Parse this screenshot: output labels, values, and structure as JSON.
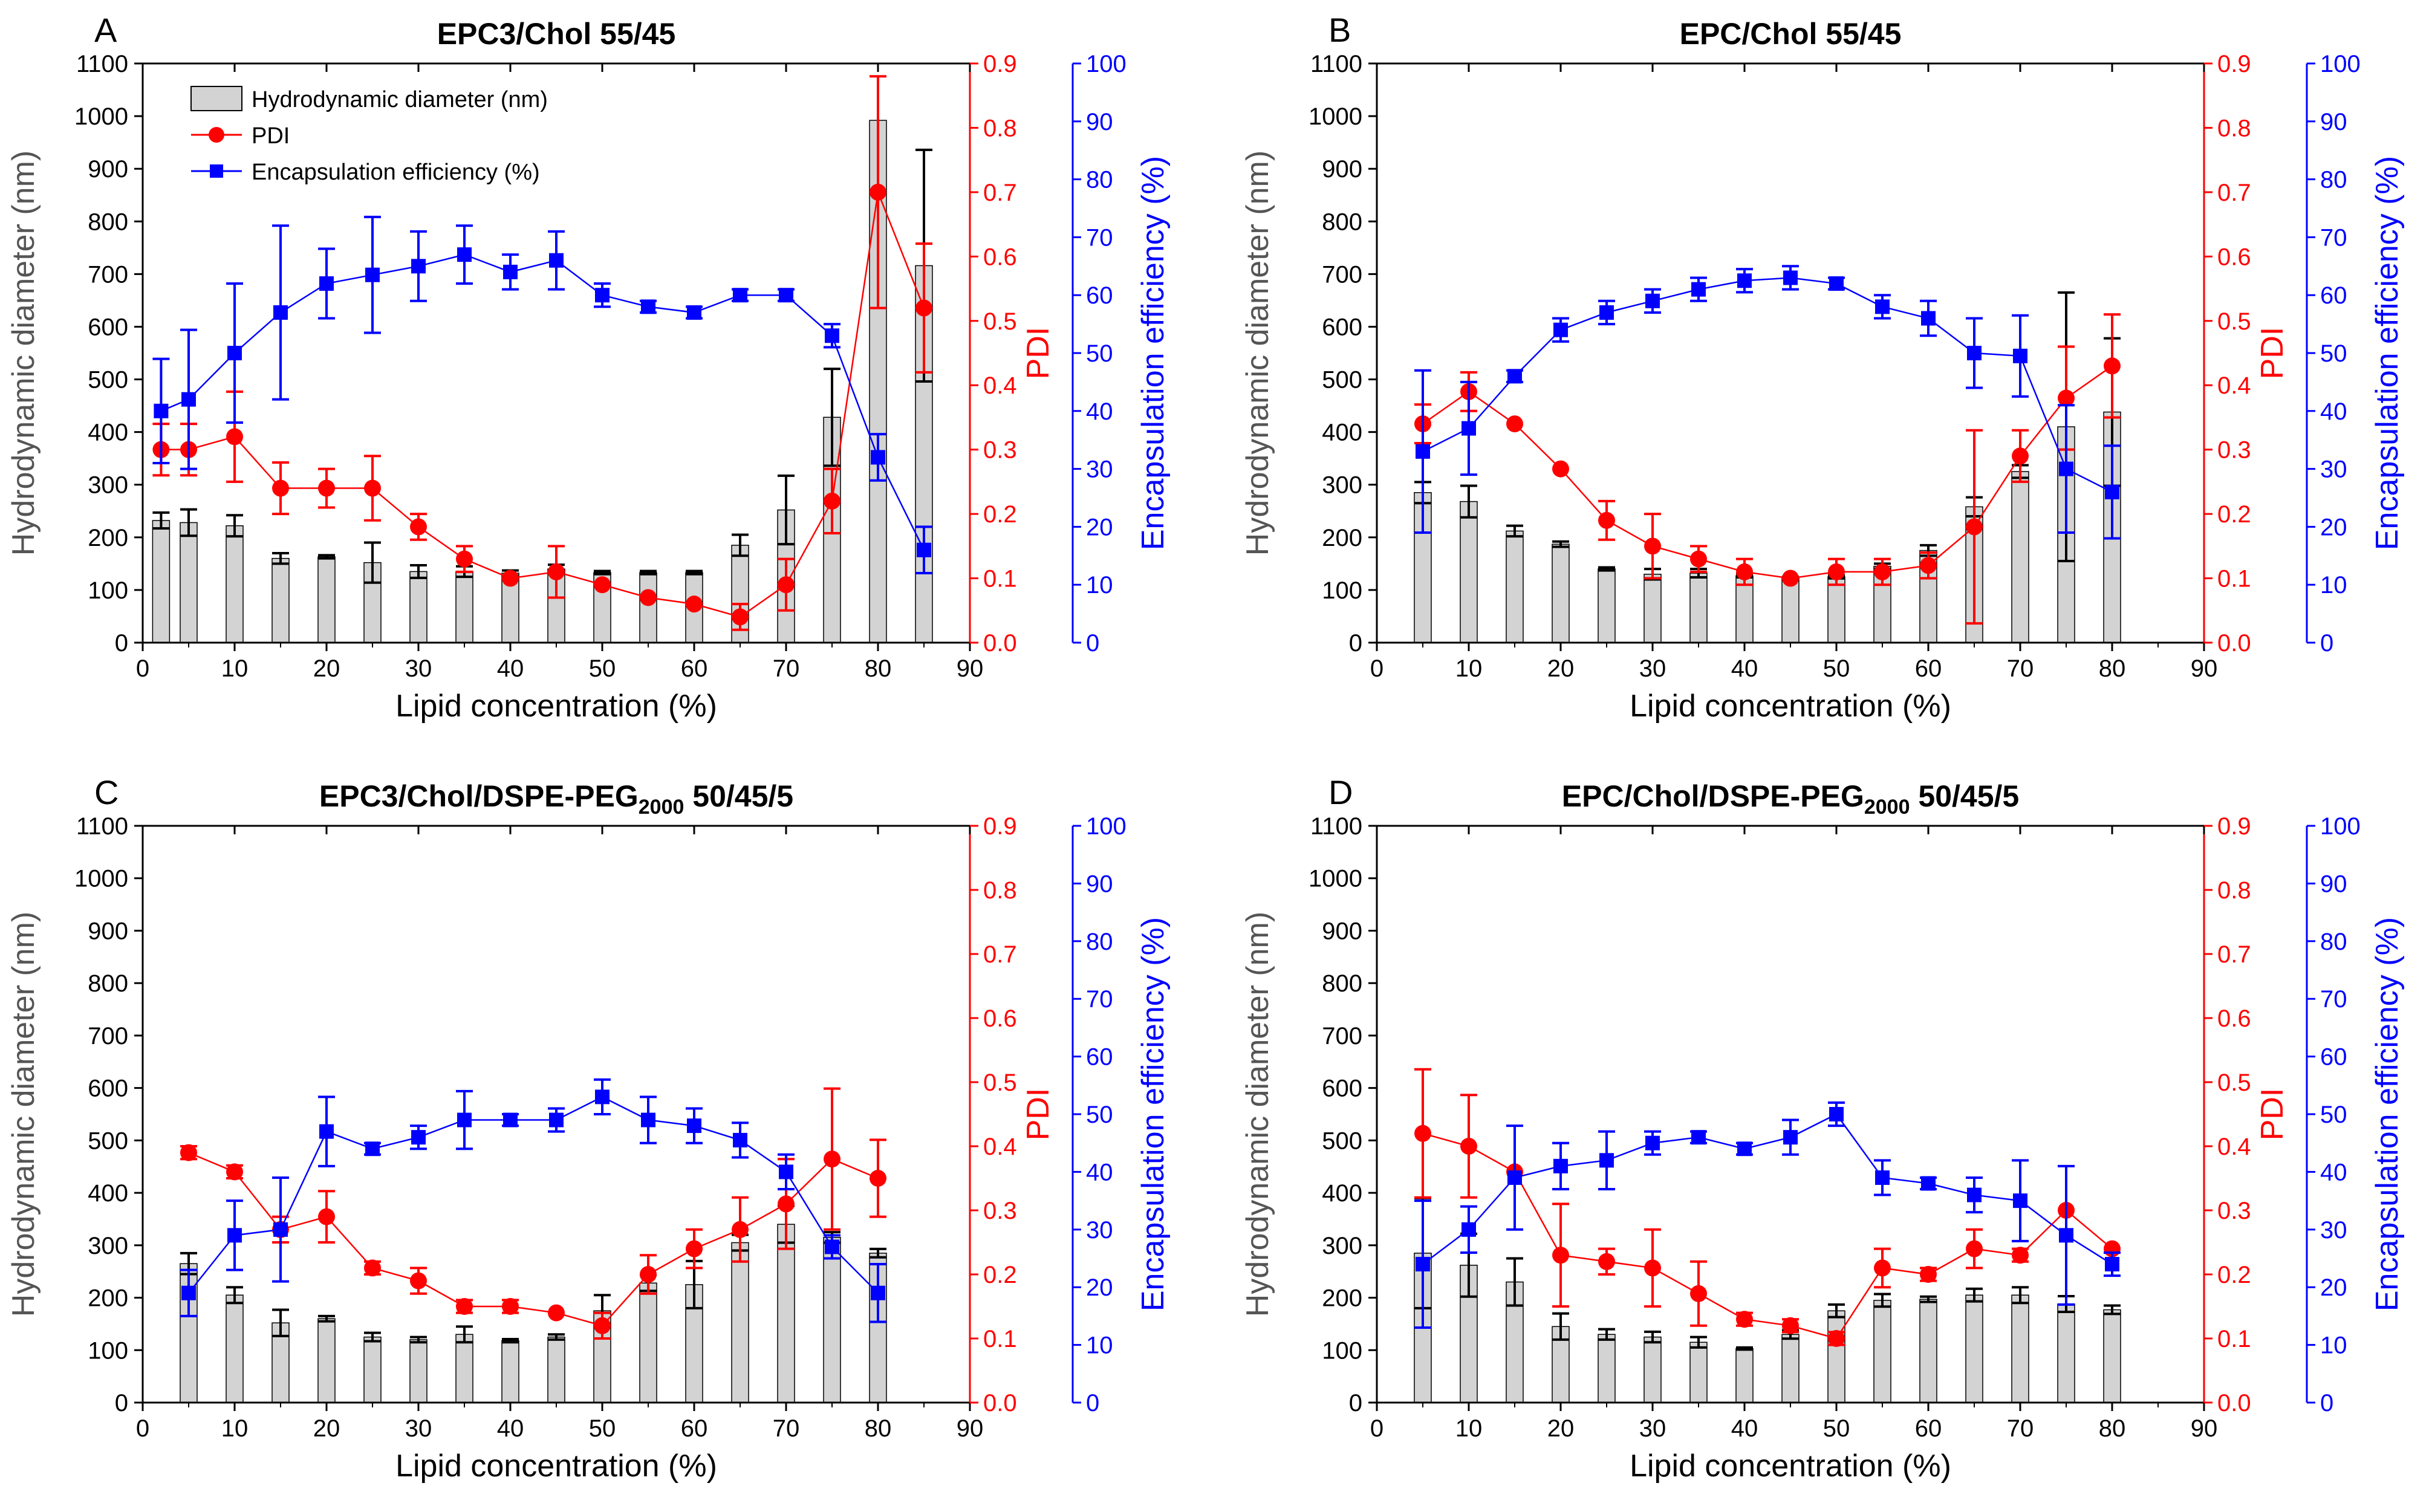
{
  "colors": {
    "bar_fill": "#d3d3d3",
    "bar_stroke": "#000000",
    "pdi": "#ff0000",
    "ee": "#0000ff",
    "axis": "#000000",
    "errorbar": "#000000"
  },
  "legend": {
    "diameter": "Hydrodynamic diameter (nm)",
    "pdi": "PDI",
    "ee": "Encapsulation efficiency (%)"
  },
  "chart_data": [
    {
      "type": "bar+line",
      "panel_letter": "A",
      "title": "EPC3/Chol 55/45",
      "xlabel": "Lipid concentration (%)",
      "ylabel_left": "Hydrodynamic diameter (nm)",
      "ylabel_pdi": "PDI",
      "ylabel_ee": "Encapsulation efficiency (%)",
      "xlim": [
        0,
        90
      ],
      "ylim_left": [
        0,
        1100
      ],
      "ylim_pdi": [
        0,
        0.9
      ],
      "ylim_ee": [
        0,
        100
      ],
      "xticks": [
        "0",
        "10",
        "20",
        "30",
        "40",
        "50",
        "60",
        "70",
        "80",
        "90"
      ],
      "yticks_left": [
        "0",
        "100",
        "200",
        "300",
        "400",
        "500",
        "600",
        "700",
        "800",
        "900",
        "1000",
        "1100"
      ],
      "yticks_pdi": [
        "0.0",
        "0.1",
        "0.2",
        "0.3",
        "0.4",
        "0.5",
        "0.6",
        "0.7",
        "0.8",
        "0.9"
      ],
      "yticks_ee": [
        "0",
        "10",
        "20",
        "30",
        "40",
        "50",
        "60",
        "70",
        "80",
        "90",
        "100"
      ],
      "has_legend": true,
      "x": [
        2,
        5,
        10,
        15,
        20,
        25,
        30,
        35,
        40,
        45,
        50,
        55,
        60,
        65,
        70,
        75,
        80,
        85
      ],
      "diameter": [
        232,
        228,
        222,
        160,
        163,
        152,
        135,
        135,
        132,
        140,
        133,
        133,
        133,
        185,
        252,
        428,
        992,
        716
      ],
      "diameter_err": [
        15,
        25,
        20,
        10,
        3,
        38,
        12,
        10,
        5,
        8,
        3,
        3,
        3,
        20,
        65,
        92,
        0,
        220
      ],
      "pdi": [
        0.3,
        0.3,
        0.32,
        0.24,
        0.24,
        0.24,
        0.18,
        0.13,
        0.1,
        0.11,
        0.09,
        0.07,
        0.06,
        0.04,
        0.09,
        0.22,
        0.7,
        0.52
      ],
      "pdi_err": [
        0.04,
        0.04,
        0.07,
        0.04,
        0.03,
        0.05,
        0.02,
        0.02,
        0.0,
        0.04,
        0.0,
        0.0,
        0.0,
        0.02,
        0.04,
        0.05,
        0.18,
        0.1
      ],
      "ee": [
        40,
        42,
        50,
        57,
        62,
        63.5,
        65,
        67,
        64,
        66,
        60,
        58,
        57,
        60,
        60,
        53,
        32,
        16
      ],
      "ee_err": [
        9,
        12,
        12,
        15,
        6,
        10,
        6,
        5,
        3,
        5,
        2,
        1,
        1,
        1,
        1,
        2,
        4,
        4
      ]
    },
    {
      "type": "bar+line",
      "panel_letter": "B",
      "title": "EPC/Chol 55/45",
      "xlabel": "Lipid concentration (%)",
      "ylabel_left": "Hydrodynamic diameter (nm)",
      "ylabel_pdi": "PDI",
      "ylabel_ee": "Encapsulation efficiency (%)",
      "xlim": [
        0,
        90
      ],
      "ylim_left": [
        0,
        1100
      ],
      "ylim_pdi": [
        0,
        0.9
      ],
      "ylim_ee": [
        0,
        100
      ],
      "xticks": [
        "0",
        "10",
        "20",
        "30",
        "40",
        "50",
        "60",
        "70",
        "80",
        "90"
      ],
      "yticks_left": [
        "0",
        "100",
        "200",
        "300",
        "400",
        "500",
        "600",
        "700",
        "800",
        "900",
        "1000",
        "1100"
      ],
      "yticks_pdi": [
        "0.0",
        "0.1",
        "0.2",
        "0.3",
        "0.4",
        "0.5",
        "0.6",
        "0.7",
        "0.8",
        "0.9"
      ],
      "yticks_ee": [
        "0",
        "10",
        "20",
        "30",
        "40",
        "50",
        "60",
        "70",
        "80",
        "90",
        "100"
      ],
      "has_legend": false,
      "x": [
        5,
        10,
        15,
        20,
        25,
        30,
        35,
        40,
        45,
        50,
        55,
        60,
        65,
        70,
        75,
        80
      ],
      "diameter": [
        285,
        268,
        212,
        187,
        140,
        130,
        132,
        127,
        122,
        125,
        145,
        175,
        258,
        325,
        410,
        438
      ],
      "diameter_err": [
        20,
        30,
        10,
        5,
        3,
        10,
        8,
        3,
        3,
        3,
        5,
        10,
        18,
        12,
        255,
        140
      ],
      "pdi": [
        0.34,
        0.39,
        0.34,
        0.27,
        0.19,
        0.15,
        0.13,
        0.11,
        0.1,
        0.11,
        0.11,
        0.12,
        0.18,
        0.29,
        0.38,
        0.43
      ],
      "pdi_err": [
        0.03,
        0.03,
        0.0,
        0.0,
        0.03,
        0.05,
        0.02,
        0.02,
        0.0,
        0.02,
        0.02,
        0.02,
        0.15,
        0.04,
        0.08,
        0.08
      ],
      "ee": [
        33,
        37,
        46,
        54,
        57,
        59,
        61,
        62.5,
        63,
        62,
        58,
        56,
        50,
        49.5,
        30,
        26
      ],
      "ee_err": [
        14,
        8,
        1,
        2,
        2,
        2,
        2,
        2,
        2,
        1,
        2,
        3,
        6,
        7,
        11,
        8
      ]
    },
    {
      "type": "bar+line",
      "panel_letter": "C",
      "title": "EPC3/Chol/DSPE-PEG",
      "title_sub": "2000",
      "title_tail": " 50/45/5",
      "xlabel": "Lipid concentration (%)",
      "ylabel_left": "Hydrodynamic diameter (nm)",
      "ylabel_pdi": "PDI",
      "ylabel_ee": "Encapsulation efficiency (%)",
      "xlim": [
        0,
        90
      ],
      "ylim_left": [
        0,
        1100
      ],
      "ylim_pdi": [
        0,
        0.9
      ],
      "ylim_ee": [
        0,
        100
      ],
      "xticks": [
        "0",
        "10",
        "20",
        "30",
        "40",
        "50",
        "60",
        "70",
        "80",
        "90"
      ],
      "yticks_left": [
        "0",
        "100",
        "200",
        "300",
        "400",
        "500",
        "600",
        "700",
        "800",
        "900",
        "1000",
        "1100"
      ],
      "yticks_pdi": [
        "0.0",
        "0.1",
        "0.2",
        "0.3",
        "0.4",
        "0.5",
        "0.6",
        "0.7",
        "0.8",
        "0.9"
      ],
      "yticks_ee": [
        "0",
        "10",
        "20",
        "30",
        "40",
        "50",
        "60",
        "70",
        "80",
        "90",
        "100"
      ],
      "has_legend": false,
      "x": [
        5,
        10,
        15,
        20,
        25,
        30,
        35,
        40,
        45,
        50,
        55,
        60,
        65,
        70,
        75,
        80
      ],
      "diameter": [
        265,
        205,
        152,
        160,
        125,
        120,
        130,
        118,
        125,
        175,
        228,
        225,
        305,
        340,
        315,
        285
      ],
      "diameter_err": [
        20,
        15,
        25,
        5,
        8,
        5,
        15,
        3,
        5,
        30,
        15,
        45,
        15,
        35,
        10,
        8
      ],
      "pdi": [
        0.39,
        0.36,
        0.27,
        0.29,
        0.21,
        0.19,
        0.15,
        0.15,
        0.14,
        0.12,
        0.2,
        0.24,
        0.27,
        0.31,
        0.38,
        0.35
      ],
      "pdi_err": [
        0.01,
        0.01,
        0.02,
        0.04,
        0.01,
        0.02,
        0.01,
        0.01,
        0.0,
        0.02,
        0.03,
        0.03,
        0.05,
        0.07,
        0.11,
        0.06
      ],
      "ee": [
        19,
        29,
        30,
        47,
        44,
        46,
        49,
        49,
        49,
        53,
        49,
        48,
        45.5,
        40,
        27,
        19
      ],
      "ee_err": [
        4,
        6,
        9,
        6,
        1,
        2,
        5,
        1,
        2,
        3,
        4,
        3,
        3,
        3,
        2,
        5
      ]
    },
    {
      "type": "bar+line",
      "panel_letter": "D",
      "title": "EPC/Chol/DSPE-PEG",
      "title_sub": "2000",
      "title_tail": " 50/45/5",
      "xlabel": "Lipid concentration (%)",
      "ylabel_left": "Hydrodynamic diameter (nm)",
      "ylabel_pdi": "PDI",
      "ylabel_ee": "Encapsulation efficiency (%)",
      "xlim": [
        0,
        90
      ],
      "ylim_left": [
        0,
        1100
      ],
      "ylim_pdi": [
        0,
        0.9
      ],
      "ylim_ee": [
        0,
        100
      ],
      "xticks": [
        "0",
        "10",
        "20",
        "30",
        "40",
        "50",
        "60",
        "70",
        "80",
        "90"
      ],
      "yticks_left": [
        "0",
        "100",
        "200",
        "300",
        "400",
        "500",
        "600",
        "700",
        "800",
        "900",
        "1000",
        "1100"
      ],
      "yticks_pdi": [
        "0.0",
        "0.1",
        "0.2",
        "0.3",
        "0.4",
        "0.5",
        "0.6",
        "0.7",
        "0.8",
        "0.9"
      ],
      "yticks_ee": [
        "0",
        "10",
        "20",
        "30",
        "40",
        "50",
        "60",
        "70",
        "80",
        "90",
        "100"
      ],
      "has_legend": false,
      "x": [
        5,
        10,
        15,
        20,
        25,
        30,
        35,
        40,
        45,
        50,
        55,
        60,
        65,
        70,
        75,
        80
      ],
      "diameter": [
        285,
        262,
        230,
        145,
        130,
        125,
        115,
        103,
        130,
        175,
        195,
        197,
        205,
        205,
        188,
        177
      ],
      "diameter_err": [
        105,
        60,
        45,
        25,
        10,
        10,
        10,
        2,
        8,
        12,
        12,
        5,
        12,
        15,
        15,
        8
      ],
      "pdi": [
        0.42,
        0.4,
        0.36,
        0.23,
        0.22,
        0.21,
        0.17,
        0.13,
        0.12,
        0.1,
        0.21,
        0.2,
        0.24,
        0.23,
        0.3,
        0.24
      ],
      "pdi_err": [
        0.1,
        0.08,
        0.0,
        0.08,
        0.02,
        0.06,
        0.05,
        0.01,
        0.01,
        0.01,
        0.03,
        0.01,
        0.03,
        0.01,
        0.0,
        0.0
      ],
      "ee": [
        24,
        30,
        39,
        41,
        42,
        45,
        46,
        44,
        46,
        50,
        39,
        38,
        36,
        35,
        29,
        24
      ],
      "ee_err": [
        11,
        4,
        9,
        4,
        5,
        2,
        1,
        1,
        3,
        2,
        3,
        1,
        3,
        7,
        12,
        2
      ]
    }
  ]
}
